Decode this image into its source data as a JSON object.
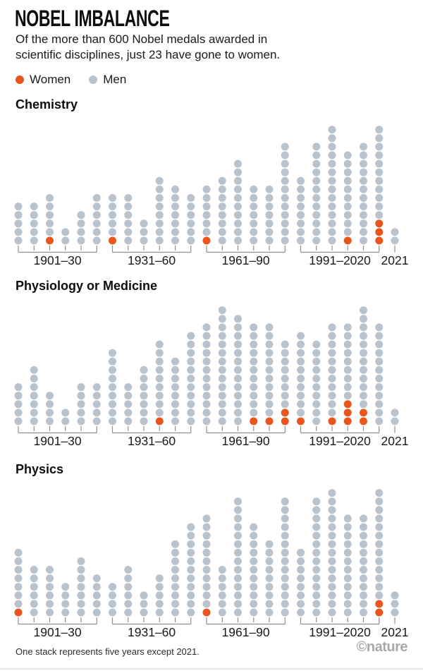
{
  "header": {
    "title": "NOBEL IMBALANCE",
    "subtitle_lines": [
      "Of the more than 600 Nobel medals awarded in",
      "scientific disciplines, just 23 have gone to women."
    ],
    "legend": [
      {
        "label": "Women",
        "color": "#e8561e"
      },
      {
        "label": "Men",
        "color": "#b9c3cd"
      }
    ]
  },
  "colors": {
    "women": "#e8561e",
    "men": "#b9c3cd",
    "axis": "#8f8f8f",
    "label": "#1a1a1a"
  },
  "footer": {
    "note": "One stack represents five years except 2021.",
    "credit": "©nature"
  },
  "chart_data": [
    {
      "type": "bar",
      "style": "stacked-dot-pictogram",
      "title": "Chemistry",
      "note": "One dot = one Nobel laureate; women dots drawn at bottom of each stack. One stack = five years except 2021.",
      "legend": [
        "Women",
        "Men"
      ],
      "group_labels": [
        "1901–30",
        "1931–60",
        "1961–90",
        "1991–2020",
        "2021"
      ],
      "groups": [
        {
          "label": "1901–30",
          "stacks": [
            {
              "women": 0,
              "men": 5
            },
            {
              "women": 0,
              "men": 5
            },
            {
              "women": 1,
              "men": 5
            },
            {
              "women": 0,
              "men": 2
            },
            {
              "women": 0,
              "men": 4
            },
            {
              "women": 0,
              "men": 6
            }
          ]
        },
        {
          "label": "1931–60",
          "stacks": [
            {
              "women": 1,
              "men": 5
            },
            {
              "women": 0,
              "men": 6
            },
            {
              "women": 0,
              "men": 3
            },
            {
              "women": 0,
              "men": 8
            },
            {
              "women": 0,
              "men": 7
            },
            {
              "women": 0,
              "men": 6
            }
          ]
        },
        {
          "label": "1961–90",
          "stacks": [
            {
              "women": 1,
              "men": 6
            },
            {
              "women": 0,
              "men": 8
            },
            {
              "women": 0,
              "men": 10
            },
            {
              "women": 0,
              "men": 7
            },
            {
              "women": 0,
              "men": 7
            },
            {
              "women": 0,
              "men": 12
            }
          ]
        },
        {
          "label": "1991–2020",
          "stacks": [
            {
              "women": 0,
              "men": 8
            },
            {
              "women": 0,
              "men": 12
            },
            {
              "women": 0,
              "men": 14
            },
            {
              "women": 1,
              "men": 10
            },
            {
              "women": 0,
              "men": 12
            },
            {
              "women": 3,
              "men": 11
            }
          ]
        },
        {
          "label": "2021",
          "stacks": [
            {
              "women": 0,
              "men": 2
            }
          ]
        }
      ]
    },
    {
      "type": "bar",
      "style": "stacked-dot-pictogram",
      "title": "Physiology or Medicine",
      "note": "One dot = one Nobel laureate; women dots drawn at bottom of each stack. One stack = five years except 2021.",
      "legend": [
        "Women",
        "Men"
      ],
      "group_labels": [
        "1901–30",
        "1931–60",
        "1961–90",
        "1991–2020",
        "2021"
      ],
      "groups": [
        {
          "label": "1901–30",
          "stacks": [
            {
              "women": 0,
              "men": 5
            },
            {
              "women": 0,
              "men": 7
            },
            {
              "women": 0,
              "men": 4
            },
            {
              "women": 0,
              "men": 2
            },
            {
              "women": 0,
              "men": 5
            },
            {
              "women": 0,
              "men": 5
            }
          ]
        },
        {
          "label": "1931–60",
          "stacks": [
            {
              "women": 0,
              "men": 9
            },
            {
              "women": 0,
              "men": 5
            },
            {
              "women": 0,
              "men": 7
            },
            {
              "women": 1,
              "men": 9
            },
            {
              "women": 0,
              "men": 8
            },
            {
              "women": 0,
              "men": 11
            }
          ]
        },
        {
          "label": "1961–90",
          "stacks": [
            {
              "women": 0,
              "men": 12
            },
            {
              "women": 0,
              "men": 14
            },
            {
              "women": 0,
              "men": 13
            },
            {
              "women": 1,
              "men": 11
            },
            {
              "women": 1,
              "men": 11
            },
            {
              "women": 2,
              "men": 8
            }
          ]
        },
        {
          "label": "1991–2020",
          "stacks": [
            {
              "women": 1,
              "men": 10
            },
            {
              "women": 0,
              "men": 10
            },
            {
              "women": 1,
              "men": 11
            },
            {
              "women": 3,
              "men": 9
            },
            {
              "women": 2,
              "men": 12
            },
            {
              "women": 0,
              "men": 12
            }
          ]
        },
        {
          "label": "2021",
          "stacks": [
            {
              "women": 0,
              "men": 2
            }
          ]
        }
      ]
    },
    {
      "type": "bar",
      "style": "stacked-dot-pictogram",
      "title": "Physics",
      "note": "One dot = one Nobel laureate; women dots drawn at bottom of each stack. One stack = five years except 2021.",
      "legend": [
        "Women",
        "Men"
      ],
      "group_labels": [
        "1901–30",
        "1931–60",
        "1961–90",
        "1991–2020",
        "2021"
      ],
      "groups": [
        {
          "label": "1901–30",
          "stacks": [
            {
              "women": 1,
              "men": 7
            },
            {
              "women": 0,
              "men": 6
            },
            {
              "women": 0,
              "men": 6
            },
            {
              "women": 0,
              "men": 4
            },
            {
              "women": 0,
              "men": 7
            },
            {
              "women": 0,
              "men": 5
            }
          ]
        },
        {
          "label": "1931–60",
          "stacks": [
            {
              "women": 0,
              "men": 4
            },
            {
              "women": 0,
              "men": 6
            },
            {
              "women": 0,
              "men": 3
            },
            {
              "women": 0,
              "men": 5
            },
            {
              "women": 0,
              "men": 9
            },
            {
              "women": 0,
              "men": 11
            }
          ]
        },
        {
          "label": "1961–90",
          "stacks": [
            {
              "women": 1,
              "men": 11
            },
            {
              "women": 0,
              "men": 6
            },
            {
              "women": 0,
              "men": 14
            },
            {
              "women": 0,
              "men": 11
            },
            {
              "women": 0,
              "men": 9
            },
            {
              "women": 0,
              "men": 14
            }
          ]
        },
        {
          "label": "1991–2020",
          "stacks": [
            {
              "women": 0,
              "men": 8
            },
            {
              "women": 0,
              "men": 14
            },
            {
              "women": 0,
              "men": 15
            },
            {
              "women": 0,
              "men": 12
            },
            {
              "women": 0,
              "men": 12
            },
            {
              "women": 2,
              "men": 13
            }
          ]
        },
        {
          "label": "2021",
          "stacks": [
            {
              "women": 0,
              "men": 3
            }
          ]
        }
      ]
    }
  ]
}
